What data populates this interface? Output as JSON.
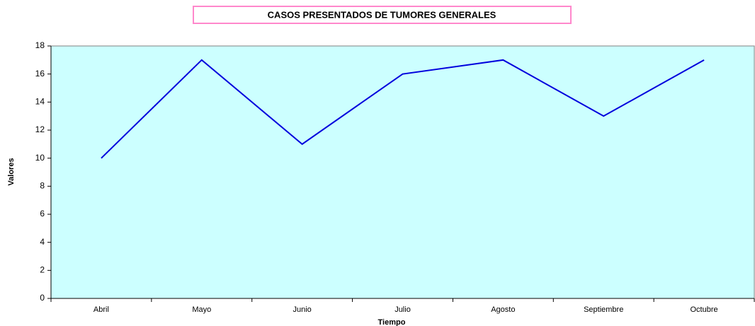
{
  "chart_data": {
    "type": "line",
    "title": "CASOS PRESENTADOS DE TUMORES GENERALES",
    "x_label": "Tiempo",
    "y_label": "Valores",
    "categories": [
      "Abril",
      "Mayo",
      "Junio",
      "Julio",
      "Agosto",
      "Septiembre",
      "Octubre"
    ],
    "values": [
      10,
      17,
      11,
      16,
      17,
      13,
      17
    ],
    "color": "#0000dd",
    "background": "#ccffff",
    "ylim": [
      0,
      18
    ],
    "yticks": [
      0,
      2,
      4,
      6,
      8,
      10,
      12,
      14,
      16,
      18
    ],
    "grid": false
  }
}
